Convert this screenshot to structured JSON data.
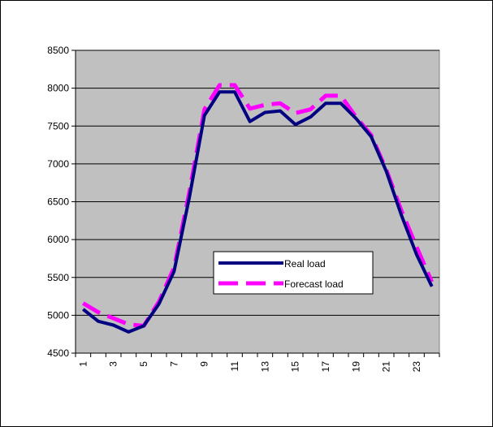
{
  "chart_data": {
    "type": "line",
    "title": "",
    "xlabel": "",
    "ylabel": "",
    "x": [
      1,
      2,
      3,
      4,
      5,
      6,
      7,
      8,
      9,
      10,
      11,
      12,
      13,
      14,
      15,
      16,
      17,
      18,
      19,
      20,
      21,
      22,
      23,
      24
    ],
    "x_tick_labels": [
      "1",
      "3",
      "5",
      "7",
      "9",
      "11",
      "13",
      "15",
      "17",
      "19",
      "21",
      "23"
    ],
    "ylim": [
      4500,
      8500
    ],
    "y_ticks": [
      4500,
      5000,
      5500,
      6000,
      6500,
      7000,
      7500,
      8000,
      8500
    ],
    "grid": true,
    "legend_position": "center-right",
    "plot_background": "#c0c0c0",
    "series": [
      {
        "name": "Real  load",
        "color": "#000080",
        "style": "solid",
        "values": [
          5080,
          4920,
          4870,
          4780,
          4860,
          5150,
          5580,
          6550,
          7640,
          7950,
          7950,
          7560,
          7680,
          7700,
          7520,
          7620,
          7800,
          7800,
          7600,
          7360,
          6900,
          6320,
          5800,
          5380
        ]
      },
      {
        "name": "Forecast  load",
        "color": "#ff00ff",
        "style": "dashed",
        "values": [
          5160,
          5040,
          4960,
          4880,
          4860,
          5180,
          5630,
          6620,
          7720,
          8040,
          8040,
          7730,
          7780,
          7800,
          7670,
          7720,
          7900,
          7900,
          7620,
          7380,
          6920,
          6380,
          5900,
          5440
        ]
      }
    ]
  }
}
